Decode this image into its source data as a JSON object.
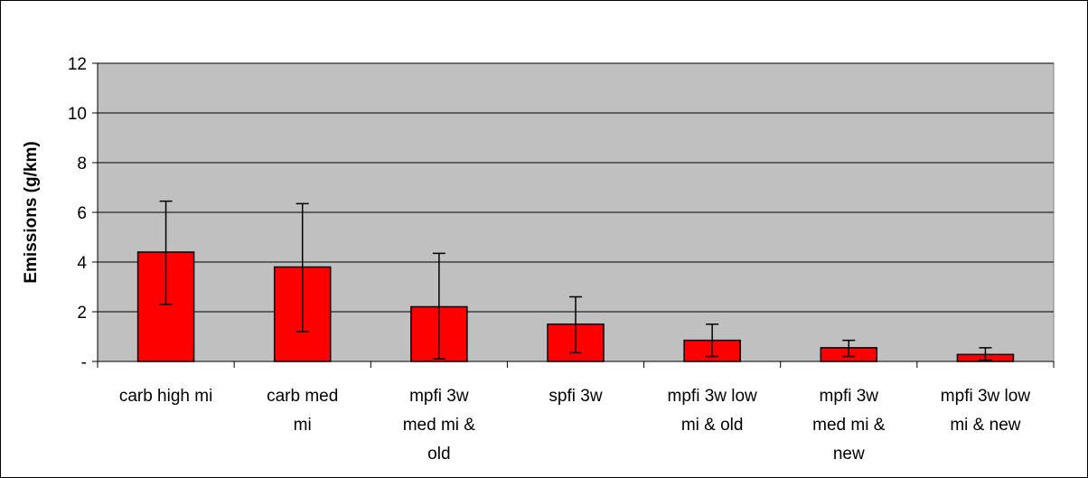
{
  "chart_data": {
    "type": "bar",
    "title": "",
    "xlabel": "",
    "ylabel": "Emissions (g/km)",
    "ylim": [
      0,
      12
    ],
    "yticks": [
      0,
      2,
      4,
      6,
      8,
      10,
      12
    ],
    "ytick_labels": [
      "-",
      "2",
      "4",
      "6",
      "8",
      "10",
      "12"
    ],
    "grid": "horizontal",
    "plot_background": "#c0c0c0",
    "bar_color": "#ff0000",
    "categories": [
      [
        "carb high mi"
      ],
      [
        "carb med",
        "mi"
      ],
      [
        "mpfi 3w",
        "med mi &",
        "old"
      ],
      [
        "spfi 3w"
      ],
      [
        "mpfi 3w low",
        "mi & old"
      ],
      [
        "mpfi 3w",
        "med mi &",
        "new"
      ],
      [
        "mpfi 3w low",
        "mi & new"
      ]
    ],
    "values": [
      4.4,
      3.8,
      2.2,
      1.5,
      0.85,
      0.55,
      0.28
    ],
    "error_low": [
      2.3,
      1.2,
      0.1,
      0.35,
      0.2,
      0.2,
      0.05
    ],
    "error_high": [
      6.45,
      6.35,
      4.35,
      2.6,
      1.5,
      0.85,
      0.55
    ]
  }
}
